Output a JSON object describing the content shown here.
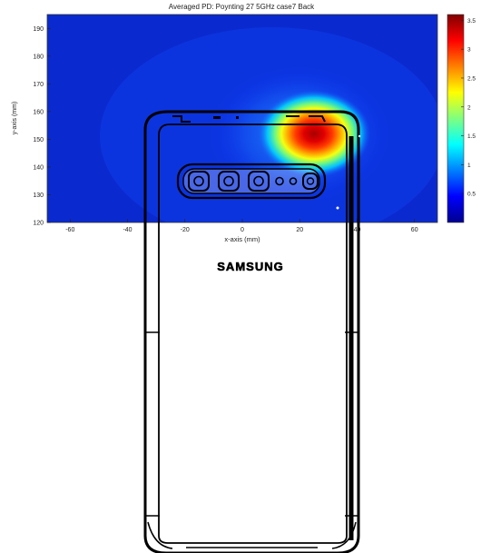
{
  "chart_data": {
    "type": "heatmap",
    "title": "Averaged PD:  Poynting 27 5GHz case7 Back",
    "xlabel": "x-axis (mm)",
    "ylabel": "y-axis (mm)",
    "xlim": [
      -68,
      68
    ],
    "ylim": [
      120,
      195
    ],
    "x_ticks": [
      -60,
      -40,
      -20,
      0,
      20,
      40,
      60
    ],
    "y_ticks": [
      120,
      130,
      140,
      150,
      160,
      170,
      180,
      190
    ],
    "colorbar": {
      "range": [
        0,
        3.6
      ],
      "ticks": [
        "0.5",
        "1",
        "1.5",
        "2",
        "2.5",
        "3",
        "3.5"
      ],
      "tick_values": [
        0.5,
        1,
        1.5,
        2,
        2.5,
        3,
        3.5
      ],
      "colormap": "jet"
    },
    "hotspot": {
      "x": 25,
      "y": 152,
      "peak": 3.4
    },
    "phone_overlay": {
      "brand": "SAMSUNG",
      "camera_module_elements": 6
    }
  }
}
